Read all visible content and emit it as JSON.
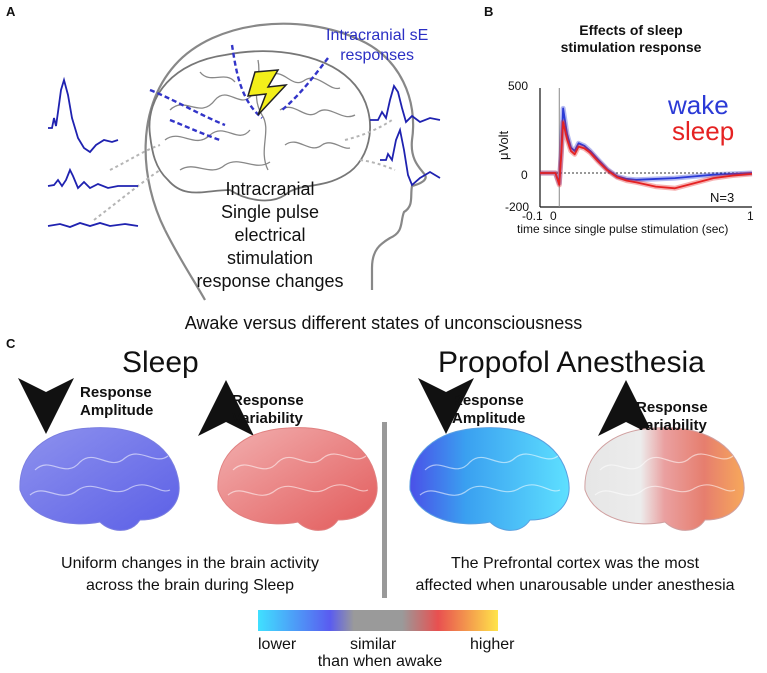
{
  "panels": {
    "a": {
      "letter": "A",
      "callout": [
        "Intracranial sE",
        "responses"
      ],
      "caption": [
        "Intracranial",
        "Single pulse",
        "electrical",
        "stimulation",
        "response changes"
      ]
    },
    "b": {
      "letter": "B",
      "title": [
        "Effects of sleep",
        "stimulation response"
      ],
      "ylabel": "μVolt",
      "xlabel": "time since single pulse stimulation (sec)",
      "yticks": [
        "500",
        "0",
        "-200"
      ],
      "xticks": [
        "-0.1",
        "0",
        "1"
      ],
      "legend": {
        "wake": "wake",
        "sleep": "sleep"
      },
      "n_label": "N=3"
    },
    "divider_text": "Awake versus different states of unconsciousness",
    "c": {
      "letter": "C",
      "sleep": {
        "title": "Sleep",
        "amp_label": [
          "Response",
          "Amplitude"
        ],
        "var_label": [
          "Response",
          "Variability"
        ],
        "caption": [
          "Uniform changes in the brain activity",
          "across the brain during Sleep"
        ]
      },
      "propofol": {
        "title": "Propofol Anesthesia",
        "amp_label": [
          "Response",
          "Amplitude"
        ],
        "var_label": [
          "Response",
          "Variability"
        ],
        "caption": [
          "The Prefrontal cortex was the most",
          "affected when unarousable under anesthesia"
        ]
      },
      "colorbar": {
        "lower": "lower",
        "similar": "similar",
        "higher": "higher",
        "sub": "than when awake",
        "colors": [
          "#40e0ff",
          "#5a5cf0",
          "#9a9a9a",
          "#e85050",
          "#ffe44a"
        ]
      }
    }
  },
  "colors": {
    "wake": "#2b3ad6",
    "sleep": "#e52222",
    "trace": "#1f22b0",
    "arrow": "#111111"
  },
  "chart_data": {
    "type": "line",
    "title": "Effects of sleep stimulation response",
    "xlabel": "time since single pulse stimulation (sec)",
    "ylabel": "μVolt",
    "xlim": [
      -0.1,
      1
    ],
    "ylim": [
      -200,
      500
    ],
    "series": [
      {
        "name": "wake",
        "x": [
          -0.1,
          -0.02,
          0,
          0.01,
          0.02,
          0.04,
          0.06,
          0.08,
          0.1,
          0.13,
          0.16,
          0.2,
          0.25,
          0.3,
          0.35,
          0.4,
          0.5,
          0.6,
          0.7,
          0.8,
          0.9,
          1.0
        ],
        "values": [
          0,
          0,
          -60,
          120,
          380,
          230,
          150,
          130,
          175,
          160,
          130,
          80,
          20,
          -20,
          -35,
          -40,
          -35,
          -30,
          -20,
          -10,
          -5,
          0
        ]
      },
      {
        "name": "sleep",
        "x": [
          -0.1,
          -0.02,
          0,
          0.01,
          0.02,
          0.04,
          0.06,
          0.08,
          0.1,
          0.13,
          0.16,
          0.2,
          0.25,
          0.3,
          0.35,
          0.4,
          0.5,
          0.6,
          0.7,
          0.8,
          0.9,
          1.0
        ],
        "values": [
          0,
          0,
          -70,
          100,
          300,
          200,
          130,
          110,
          155,
          145,
          120,
          70,
          15,
          -25,
          -45,
          -55,
          -80,
          -90,
          -60,
          -30,
          -15,
          -5
        ]
      }
    ]
  }
}
